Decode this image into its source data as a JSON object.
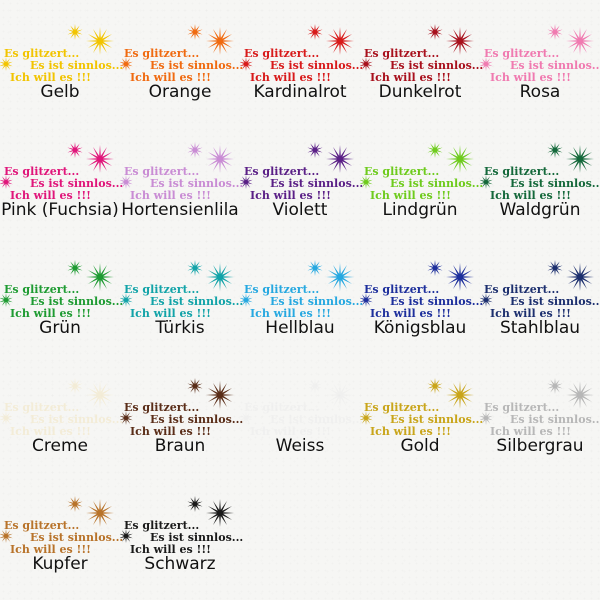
{
  "decal_lines": [
    "Es glitzert...",
    "Es ist sinnlos...",
    "Ich will es !!!"
  ],
  "swatches": [
    {
      "name": "Gelb",
      "color": "#f2c400"
    },
    {
      "name": "Orange",
      "color": "#f06a10"
    },
    {
      "name": "Kardinalrot",
      "color": "#d81a1a"
    },
    {
      "name": "Dunkelrot",
      "color": "#a8101c"
    },
    {
      "name": "Rosa",
      "color": "#f07ab0"
    },
    {
      "name": "Pink (Fuchsia)",
      "color": "#e0157a"
    },
    {
      "name": "Hortensienlila",
      "color": "#c98cd4"
    },
    {
      "name": "Violett",
      "color": "#5a1f86"
    },
    {
      "name": "Lindgrün",
      "color": "#6ecb1c"
    },
    {
      "name": "Waldgrün",
      "color": "#14683a"
    },
    {
      "name": "Grün",
      "color": "#1e9b32"
    },
    {
      "name": "Türkis",
      "color": "#12a3a8"
    },
    {
      "name": "Hellblau",
      "color": "#26a8e0"
    },
    {
      "name": "Königsblau",
      "color": "#1d2f9c"
    },
    {
      "name": "Stahlblau",
      "color": "#1c2f6e"
    },
    {
      "name": "Creme",
      "color": "#f1e2b6"
    },
    {
      "name": "Braun",
      "color": "#5a2d18"
    },
    {
      "name": "Weiss",
      "color": "#eaeaea"
    },
    {
      "name": "Gold",
      "color": "#c9a51a"
    },
    {
      "name": "Silbergrau",
      "color": "#b7b7b7"
    },
    {
      "name": "Kupfer",
      "color": "#b8732a"
    },
    {
      "name": "Schwarz",
      "color": "#1a1a1a"
    }
  ]
}
